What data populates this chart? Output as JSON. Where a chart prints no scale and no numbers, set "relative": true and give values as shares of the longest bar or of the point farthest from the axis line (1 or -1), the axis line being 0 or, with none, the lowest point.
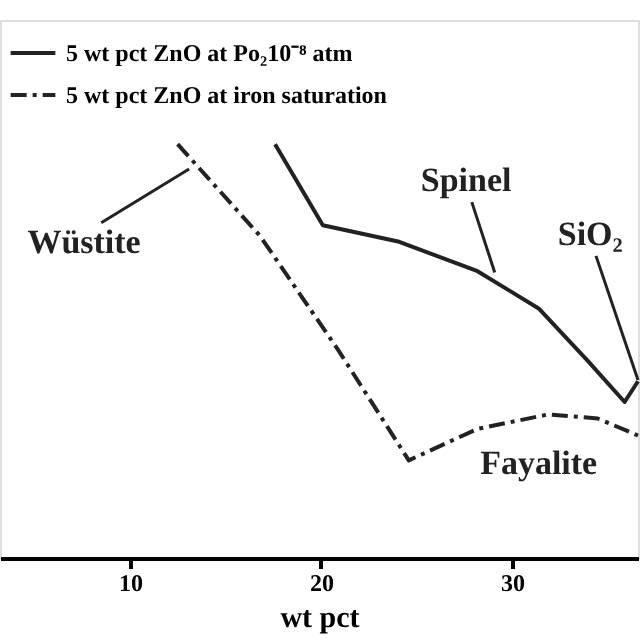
{
  "chart_data": {
    "type": "line",
    "relative": true,
    "xlabel": "wt pct",
    "xlim": [
      3.2,
      36.6
    ],
    "xticks": [
      10,
      20,
      30
    ],
    "grid": false,
    "legend": "top left",
    "marker": "none",
    "series": [
      {
        "name": "5 wt pct ZnO at Po₂10⁻⁸ atm",
        "color": "#222222",
        "line_style": "solid",
        "x": [
          17.6,
          20.1,
          24.1,
          28.2,
          31.4,
          33.96,
          35.9,
          36.6
        ],
        "values": [
          1.0,
          0.804,
          0.764,
          0.693,
          0.603,
          0.477,
          0.377,
          0.427
        ]
      },
      {
        "name": "5 wt pct ZnO at iron saturation",
        "color": "#222222",
        "line_style": "dashdot",
        "x": [
          12.5,
          16.8,
          20.9,
          24.6,
          28.2,
          31.9,
          34.5,
          36.6
        ],
        "values": [
          1.0,
          0.779,
          0.503,
          0.236,
          0.312,
          0.347,
          0.337,
          0.296
        ]
      }
    ],
    "annotations": [
      {
        "text": "Wüstite",
        "x": 13.1,
        "y": 0.94
      },
      {
        "text": "Spinel",
        "x": 29.1,
        "y": 0.69
      },
      {
        "text": "Fayalite",
        "x": 31.9,
        "y": 0.347
      },
      {
        "text": "SiO₂",
        "x": 36.6,
        "y": 0.43
      }
    ]
  }
}
